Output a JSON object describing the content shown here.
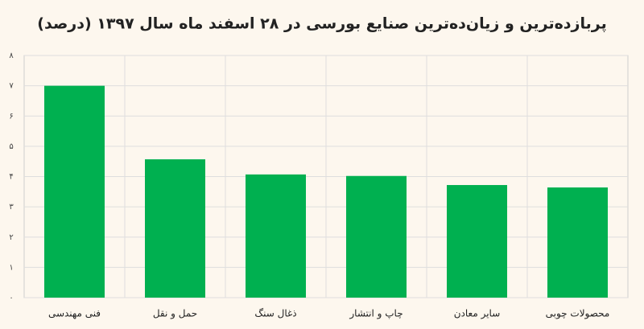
{
  "chart_data": {
    "type": "bar",
    "title": "پربازده‌ترین و زیان‌ده‌ترین صنایع بورسی در ۲۸ اسفند ماه سال ۱۳۹۷ (درصد)",
    "categories": [
      "فنی مهندسی",
      "حمل و نقل",
      "ذغال سنگ",
      "چاپ و انتشار",
      "سایر معادن",
      "محصولات چوبی"
    ],
    "values": [
      7.0,
      4.57,
      4.07,
      4.02,
      3.72,
      3.64
    ],
    "color": "#00b050",
    "ylim": [
      0,
      8
    ],
    "yticks": [
      {
        "value": 0,
        "label": "۰"
      },
      {
        "value": 1,
        "label": "۱"
      },
      {
        "value": 2,
        "label": "۲"
      },
      {
        "value": 3,
        "label": "۳"
      },
      {
        "value": 4,
        "label": "۴"
      },
      {
        "value": 5,
        "label": "۵"
      },
      {
        "value": 6,
        "label": "۶"
      },
      {
        "value": 7,
        "label": "۷"
      },
      {
        "value": 8,
        "label": "۸"
      }
    ],
    "grid": true
  }
}
